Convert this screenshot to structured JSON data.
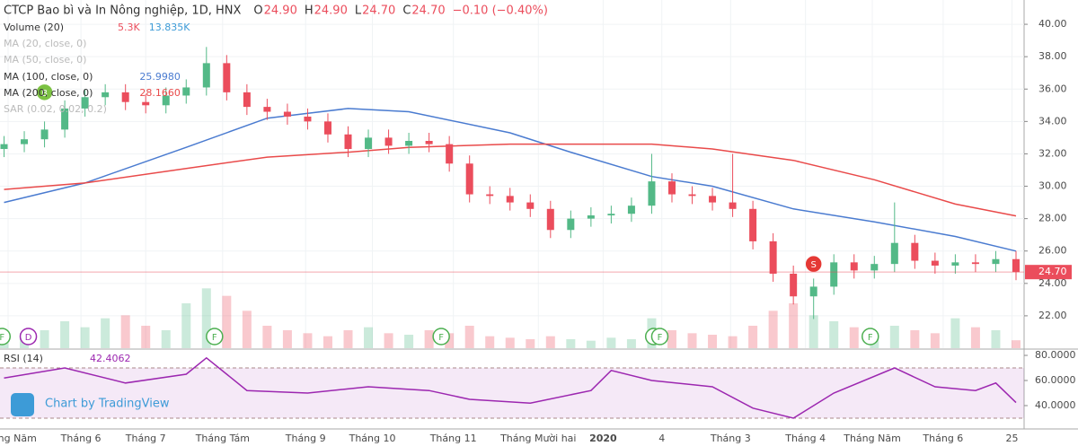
{
  "header": {
    "title": "CTCP Bao bì và In Nông nghiệp, 1D, HNX",
    "ohlc": [
      {
        "label": "O",
        "value": "24.90"
      },
      {
        "label": "H",
        "value": "24.90"
      },
      {
        "label": "L",
        "value": "24.70"
      },
      {
        "label": "C",
        "value": "24.70"
      }
    ],
    "change": "−0.10 (−0.40%)"
  },
  "chart_data": {
    "type": "candlestick",
    "xlim": [
      -0.2,
      50.4
    ],
    "xticks": [
      {
        "value": 0.2,
        "label": "Tháng Năm"
      },
      {
        "value": 3.8,
        "label": "Tháng 6"
      },
      {
        "value": 7.0,
        "label": "Tháng 7"
      },
      {
        "value": 10.8,
        "label": "Tháng Tám"
      },
      {
        "value": 14.9,
        "label": "Tháng 9"
      },
      {
        "value": 18.2,
        "label": "Tháng 10"
      },
      {
        "value": 22.2,
        "label": "Tháng 11"
      },
      {
        "value": 26.4,
        "label": "Tháng Mười hai"
      },
      {
        "value": 29.6,
        "label": "2020"
      },
      {
        "value": 32.5,
        "label": "4"
      },
      {
        "value": 35.9,
        "label": "Tháng 3"
      },
      {
        "value": 39.6,
        "label": "Tháng 4"
      },
      {
        "value": 42.9,
        "label": "Tháng Năm"
      },
      {
        "value": 46.4,
        "label": "Tháng 6"
      },
      {
        "value": 49.8,
        "label": "25"
      }
    ],
    "ylim": [
      20,
      41.5
    ],
    "yticks": [
      {
        "value": 22,
        "label": "22.00"
      },
      {
        "value": 24,
        "label": "24.00"
      },
      {
        "value": 26,
        "label": "26.00"
      },
      {
        "value": 28,
        "label": "28.00"
      },
      {
        "value": 30,
        "label": "30.00"
      },
      {
        "value": 32,
        "label": "32.00"
      },
      {
        "value": 34,
        "label": "34.00"
      },
      {
        "value": 36,
        "label": "36.00"
      },
      {
        "value": 38,
        "label": "38.00"
      },
      {
        "value": 40,
        "label": "40.00"
      }
    ],
    "up_color": "#53b987",
    "down_color": "#eb4d5c",
    "candles": {
      "open": [
        32.3,
        32.6,
        32.9,
        33.5,
        34.8,
        35.5,
        35.8,
        35.2,
        35.0,
        35.6,
        36.1,
        37.6,
        35.8,
        34.9,
        34.6,
        34.3,
        34.0,
        33.2,
        32.3,
        33.0,
        32.5,
        32.8,
        32.6,
        31.4,
        29.5,
        29.4,
        29.0,
        28.6,
        27.3,
        28.0,
        28.2,
        28.3,
        28.8,
        30.3,
        29.5,
        29.4,
        29.0,
        28.6,
        26.6,
        24.6,
        23.2,
        23.8,
        25.3,
        24.8,
        25.2,
        26.5,
        25.4,
        25.1,
        25.3,
        25.2,
        25.5
      ],
      "high": [
        33.1,
        33.4,
        34.0,
        35.3,
        36.0,
        36.3,
        36.3,
        35.7,
        36.1,
        36.6,
        38.6,
        38.1,
        36.3,
        35.4,
        35.1,
        34.8,
        34.5,
        33.7,
        33.5,
        33.5,
        33.3,
        33.3,
        33.1,
        31.9,
        30.0,
        29.9,
        29.5,
        29.1,
        28.5,
        28.7,
        28.8,
        29.3,
        32.0,
        30.8,
        30.0,
        29.9,
        32.0,
        29.1,
        27.1,
        25.1,
        24.3,
        25.8,
        25.8,
        25.7,
        29.0,
        27.0,
        25.9,
        25.8,
        25.8,
        26.0,
        26.0
      ],
      "low": [
        31.8,
        32.1,
        32.4,
        33.0,
        34.3,
        35.0,
        34.7,
        34.5,
        34.5,
        35.1,
        35.6,
        35.3,
        34.4,
        34.1,
        33.8,
        33.5,
        32.7,
        31.8,
        31.8,
        32.0,
        32.0,
        32.1,
        30.9,
        29.0,
        28.9,
        28.5,
        28.1,
        26.8,
        26.8,
        27.5,
        27.7,
        27.8,
        28.3,
        29.0,
        28.9,
        28.5,
        28.1,
        26.1,
        24.1,
        22.7,
        21.8,
        23.3,
        24.3,
        24.3,
        24.7,
        24.9,
        24.6,
        24.6,
        24.7,
        24.7,
        24.2
      ],
      "close": [
        32.6,
        32.9,
        33.5,
        34.8,
        35.5,
        35.8,
        35.2,
        35.0,
        35.6,
        36.1,
        37.6,
        35.8,
        34.9,
        34.6,
        34.3,
        34.0,
        33.2,
        32.3,
        33.0,
        32.5,
        32.8,
        32.6,
        31.4,
        29.5,
        29.4,
        29.0,
        28.6,
        27.3,
        28.0,
        28.2,
        28.3,
        28.8,
        30.3,
        29.5,
        29.4,
        29.0,
        28.6,
        26.6,
        24.6,
        23.2,
        23.8,
        25.3,
        24.8,
        25.2,
        26.5,
        25.4,
        25.1,
        25.3,
        25.2,
        25.5,
        24.7
      ]
    },
    "last_price_label": "24.70",
    "volume": {
      "name": "Volume (20)",
      "value_label": "5.3K",
      "ma_label": "13.835K",
      "vlim": [
        0,
        60
      ],
      "values": [
        8,
        10,
        12,
        18,
        14,
        20,
        22,
        15,
        12,
        30,
        40,
        35,
        25,
        15,
        12,
        10,
        8,
        12,
        14,
        10,
        9,
        12,
        10,
        15,
        8,
        7,
        6,
        8,
        6,
        5,
        7,
        6,
        20,
        12,
        10,
        9,
        8,
        15,
        25,
        30,
        22,
        18,
        14,
        10,
        15,
        12,
        10,
        20,
        14,
        12,
        5.3
      ]
    },
    "series": [
      {
        "name": "MA (100, close, 0)",
        "value_label": "25.9980",
        "color": "#4a7bd0",
        "x": [
          0,
          4,
          9,
          13,
          17,
          20,
          25,
          28,
          32,
          35,
          39,
          43,
          47,
          50
        ],
        "values": [
          29.0,
          30.2,
          32.4,
          34.2,
          34.8,
          34.6,
          33.3,
          32.1,
          30.6,
          30.0,
          28.6,
          27.8,
          26.9,
          25.998
        ]
      },
      {
        "name": "MA (200, close, 0)",
        "value_label": "28.1660",
        "color": "#e94a4a",
        "x": [
          0,
          4,
          9,
          13,
          17,
          20,
          25,
          28,
          32,
          35,
          39,
          43,
          47,
          50
        ],
        "values": [
          29.8,
          30.2,
          31.1,
          31.8,
          32.1,
          32.4,
          32.6,
          32.6,
          32.6,
          32.3,
          31.6,
          30.4,
          28.9,
          28.166
        ]
      }
    ],
    "hidden_indicators": [
      "MA (20, close, 0)",
      "MA (50, close, 0)",
      "SAR (0.02, 0.02, 0.2)"
    ],
    "events": [
      {
        "label": "B",
        "x": 2,
        "y": 35.8,
        "color": "#7cc243"
      },
      {
        "label": "S",
        "x": 40,
        "y": 25.2,
        "color": "#e53935"
      },
      {
        "label": "F",
        "x": -0.1,
        "color": "#4caf50"
      },
      {
        "label": "D",
        "x": 1.2,
        "color": "#9c27b0"
      },
      {
        "label": "F",
        "x": 10.4,
        "color": "#4caf50"
      },
      {
        "label": "F",
        "x": 21.6,
        "color": "#4caf50"
      },
      {
        "label": "F",
        "x": 32.1,
        "color": "#4caf50"
      },
      {
        "label": "F",
        "x": 32.4,
        "color": "#4caf50"
      },
      {
        "label": "F",
        "x": 42.8,
        "color": "#4caf50"
      }
    ],
    "rsi": {
      "name": "RSI (14)",
      "value_label": "42.4062",
      "color": "#9c27b0",
      "ylim": [
        21.4,
        84.3
      ],
      "yticks": [
        {
          "value": 40,
          "label": "40.0000"
        },
        {
          "value": 60,
          "label": "60.0000"
        },
        {
          "value": 80,
          "label": "80.0000"
        }
      ],
      "band": [
        30,
        70
      ],
      "x": [
        0,
        3,
        6,
        9,
        10,
        12,
        15,
        18,
        21,
        23,
        26,
        29,
        30,
        32,
        35,
        37,
        39,
        41,
        44,
        46,
        48,
        49,
        50
      ],
      "values": [
        62,
        70,
        58,
        65,
        78,
        52,
        50,
        55,
        52,
        45,
        42,
        52,
        68,
        60,
        55,
        38,
        30,
        50,
        70,
        55,
        52,
        58,
        42.4062
      ]
    },
    "watermark": "Chart by TradingView"
  }
}
